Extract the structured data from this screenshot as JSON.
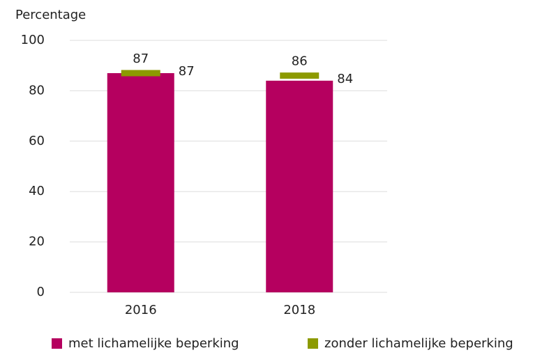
{
  "chart_data": {
    "type": "bar",
    "y_axis_label": "Percentage",
    "categories": [
      "2016",
      "2018"
    ],
    "series": [
      {
        "name": "met lichamelijke beperking",
        "color": "#b5005f",
        "values": [
          87,
          84
        ]
      },
      {
        "name": "zonder lichamelijke beperking",
        "color": "#8c9a00",
        "values": [
          87,
          86
        ],
        "type": "marker"
      }
    ],
    "ylim": [
      0,
      100
    ],
    "yticks": [
      0,
      20,
      40,
      60,
      80,
      100
    ],
    "grid": true
  }
}
